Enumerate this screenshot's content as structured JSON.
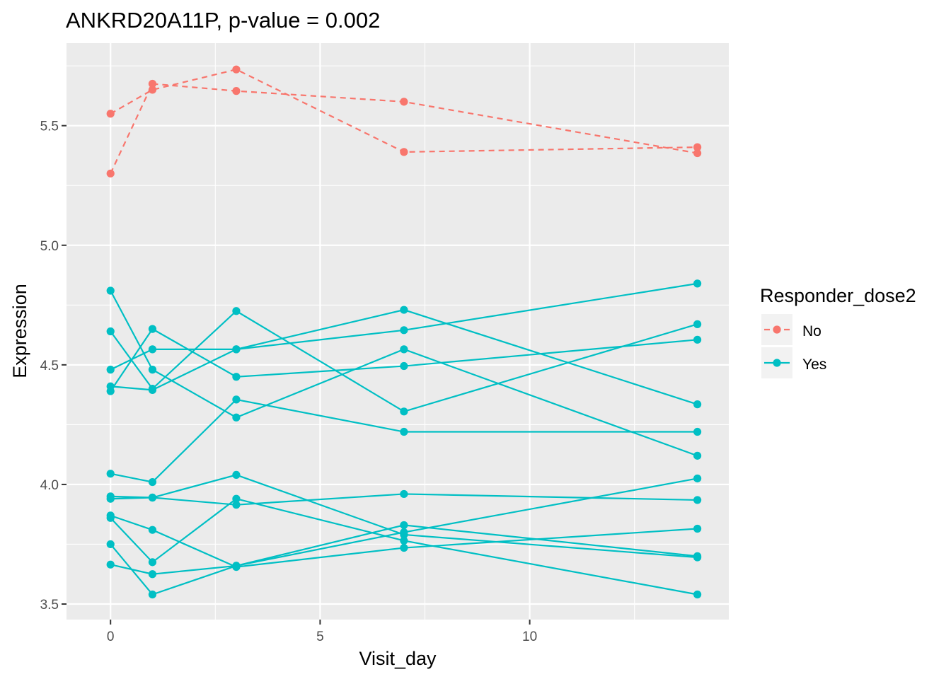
{
  "chart_data": {
    "type": "line",
    "title": "ANKRD20A11P, p-value = 0.002",
    "xlabel": "Visit_day",
    "ylabel": "Expression",
    "xlim": [
      -1.05,
      14.75
    ],
    "ylim": [
      3.435,
      5.845
    ],
    "x_ticks": [
      0,
      5,
      10
    ],
    "x_tick_labels": [
      "0",
      "5",
      "10"
    ],
    "y_ticks": [
      3.5,
      4.0,
      4.5,
      5.0,
      5.5
    ],
    "y_tick_labels": [
      "3.5",
      "4.0",
      "4.5",
      "5.0",
      "5.5"
    ],
    "grid": true,
    "legend": {
      "title": "Responder_dose2",
      "position": "right",
      "entries": [
        {
          "label": "No",
          "color": "#F8766D",
          "linetype": "dashed"
        },
        {
          "label": "Yes",
          "color": "#00BFC4",
          "linetype": "solid"
        }
      ]
    },
    "colors": {
      "panel_background": "#EBEBEB",
      "grid": "#FFFFFF",
      "No": "#F8766D",
      "Yes": "#00BFC4"
    },
    "series": [
      {
        "group": "No",
        "x": [
          0,
          1,
          3,
          7,
          14
        ],
        "y": [
          5.55,
          5.65,
          5.735,
          5.39,
          5.41
        ]
      },
      {
        "group": "No",
        "x": [
          0,
          1,
          3,
          7,
          14
        ],
        "y": [
          5.3,
          5.675,
          5.645,
          5.6,
          5.385
        ]
      },
      {
        "group": "Yes",
        "x": [
          0,
          1,
          3,
          7,
          14
        ],
        "y": [
          4.81,
          4.48,
          4.28,
          4.565,
          4.12
        ]
      },
      {
        "group": "Yes",
        "x": [
          0,
          1,
          3,
          7,
          14
        ],
        "y": [
          4.64,
          4.4,
          4.725,
          4.305,
          4.67
        ]
      },
      {
        "group": "Yes",
        "x": [
          0,
          1,
          3,
          7,
          14
        ],
        "y": [
          4.48,
          4.565,
          4.565,
          4.73,
          4.335
        ]
      },
      {
        "group": "Yes",
        "x": [
          0,
          1,
          3,
          7,
          14
        ],
        "y": [
          4.39,
          4.65,
          4.45,
          4.495,
          4.605
        ]
      },
      {
        "group": "Yes",
        "x": [
          0,
          1,
          3,
          7,
          14
        ],
        "y": [
          4.41,
          4.395,
          4.565,
          4.645,
          4.84
        ]
      },
      {
        "group": "Yes",
        "x": [
          0,
          1,
          3,
          7,
          14
        ],
        "y": [
          4.045,
          4.01,
          4.355,
          4.22,
          4.22
        ]
      },
      {
        "group": "Yes",
        "x": [
          0,
          1,
          3,
          7,
          14
        ],
        "y": [
          3.95,
          3.945,
          4.04,
          3.79,
          3.695
        ]
      },
      {
        "group": "Yes",
        "x": [
          0,
          1,
          3,
          7,
          14
        ],
        "y": [
          3.94,
          3.945,
          3.915,
          3.96,
          3.935
        ]
      },
      {
        "group": "Yes",
        "x": [
          0,
          1,
          3,
          7,
          14
        ],
        "y": [
          3.87,
          3.81,
          3.655,
          3.735,
          3.815
        ]
      },
      {
        "group": "Yes",
        "x": [
          0,
          1,
          3,
          7,
          14
        ],
        "y": [
          3.86,
          3.675,
          3.94,
          3.765,
          3.54
        ]
      },
      {
        "group": "Yes",
        "x": [
          0,
          1,
          3,
          7,
          14
        ],
        "y": [
          3.75,
          3.54,
          3.66,
          3.83,
          3.7
        ]
      },
      {
        "group": "Yes",
        "x": [
          0,
          1,
          3,
          7,
          14
        ],
        "y": [
          3.665,
          3.625,
          3.66,
          3.8,
          4.025
        ]
      }
    ]
  }
}
